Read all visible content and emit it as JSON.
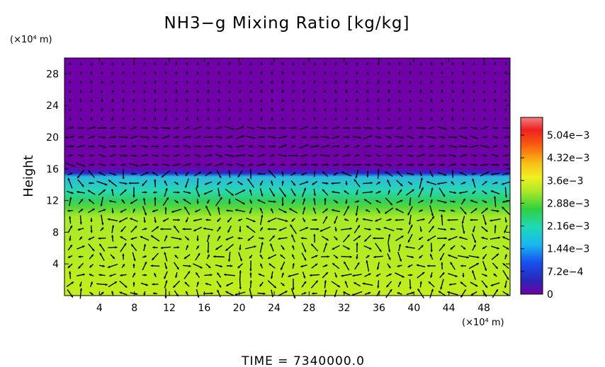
{
  "chart_data": {
    "type": "heatmap",
    "title": "NH3−g Mixing Ratio [kg/kg]",
    "ylabel": "Height",
    "y_unit": "(×10⁴ m)",
    "x_unit": "(×10⁴ m)",
    "x_ticks": [
      "4",
      "8",
      "12",
      "16",
      "20",
      "24",
      "28",
      "32",
      "36",
      "40",
      "44",
      "48"
    ],
    "y_ticks": [
      "4",
      "8",
      "12",
      "16",
      "20",
      "24",
      "28"
    ],
    "xlim": [
      0,
      51
    ],
    "ylim": [
      0,
      30
    ],
    "colorbar": {
      "labels": [
        "5.04e−3",
        "4.32e−3",
        "3.6e−3",
        "2.88e−3",
        "2.16e−3",
        "1.44e−3",
        "7.2e−4",
        "0"
      ],
      "values": [
        0.00504,
        0.00432,
        0.0036,
        0.00288,
        0.00216,
        0.00144,
        0.00072,
        0
      ],
      "range": [
        0,
        0.0056
      ]
    },
    "regions": [
      {
        "name": "upper",
        "y_range": [
          16.5,
          30
        ],
        "value": 0
      },
      {
        "name": "transition",
        "y_range": [
          12.5,
          16.5
        ],
        "value_range": [
          0.0012,
          0.0029
        ]
      },
      {
        "name": "lower",
        "y_range": [
          0,
          11
        ],
        "value": 0.0033
      }
    ],
    "overlay": "wind vectors",
    "time_label": "TIME  =  7340000.0"
  }
}
